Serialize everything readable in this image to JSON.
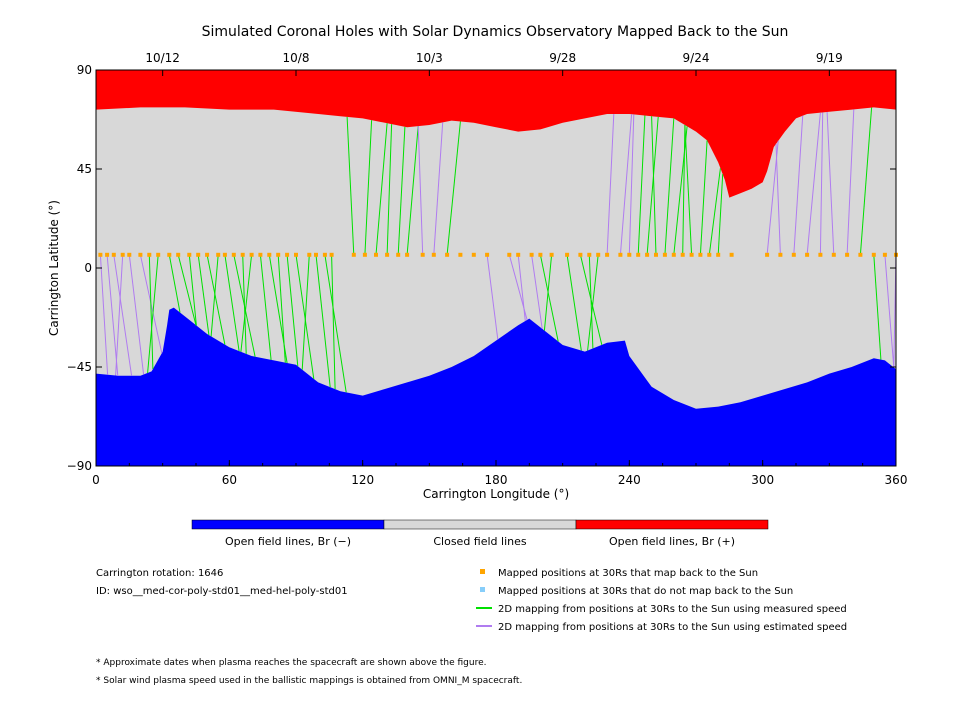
{
  "chart_data": {
    "type": "area",
    "title": "Simulated Coronal Holes with Solar Dynamics Observatory Mapped Back to the Sun",
    "xlabel": "Carrington Longitude (°)",
    "ylabel": "Carrington Latitude (°)",
    "xlim": [
      0,
      360
    ],
    "ylim": [
      -90,
      90
    ],
    "x_ticks": [
      0,
      60,
      120,
      180,
      240,
      300,
      360
    ],
    "y_ticks": [
      -90,
      -45,
      0,
      45,
      90
    ],
    "date_ticks": [
      {
        "label": "10/12",
        "lon": 30
      },
      {
        "label": "10/8",
        "lon": 90
      },
      {
        "label": "10/3",
        "lon": 150
      },
      {
        "label": "9/28",
        "lon": 210
      },
      {
        "label": "9/24",
        "lon": 270
      },
      {
        "label": "9/19",
        "lon": 330
      }
    ],
    "colors": {
      "negative": "#0000ff",
      "closed": "#d8d8d8",
      "positive": "#ff0000",
      "mapped": "#ffa500",
      "unmapped": "#87cefa",
      "measured": "#00e000",
      "estimated": "#b07cf0"
    },
    "north_boundary": [
      [
        0,
        72
      ],
      [
        20,
        73
      ],
      [
        40,
        73
      ],
      [
        60,
        72
      ],
      [
        80,
        72
      ],
      [
        100,
        70
      ],
      [
        110,
        69
      ],
      [
        120,
        68
      ],
      [
        130,
        66
      ],
      [
        140,
        64
      ],
      [
        150,
        65
      ],
      [
        160,
        67
      ],
      [
        170,
        66
      ],
      [
        180,
        64
      ],
      [
        190,
        62
      ],
      [
        200,
        63
      ],
      [
        210,
        66
      ],
      [
        220,
        68
      ],
      [
        230,
        70
      ],
      [
        240,
        70
      ],
      [
        250,
        69
      ],
      [
        260,
        68
      ],
      [
        270,
        62
      ],
      [
        275,
        58
      ],
      [
        280,
        48
      ],
      [
        283,
        40
      ],
      [
        285,
        32
      ],
      [
        290,
        34
      ],
      [
        295,
        36
      ],
      [
        300,
        39
      ],
      [
        302,
        44
      ],
      [
        305,
        55
      ],
      [
        310,
        62
      ],
      [
        315,
        68
      ],
      [
        320,
        70
      ],
      [
        330,
        71
      ],
      [
        340,
        72
      ],
      [
        350,
        73
      ],
      [
        360,
        72
      ]
    ],
    "south_boundary": [
      [
        0,
        -48
      ],
      [
        10,
        -49
      ],
      [
        20,
        -49
      ],
      [
        25,
        -47
      ],
      [
        30,
        -38
      ],
      [
        32,
        -26
      ],
      [
        33,
        -19
      ],
      [
        35,
        -18
      ],
      [
        40,
        -22
      ],
      [
        50,
        -30
      ],
      [
        60,
        -36
      ],
      [
        70,
        -40
      ],
      [
        80,
        -42
      ],
      [
        90,
        -44
      ],
      [
        100,
        -52
      ],
      [
        110,
        -56
      ],
      [
        120,
        -58
      ],
      [
        130,
        -55
      ],
      [
        140,
        -52
      ],
      [
        150,
        -49
      ],
      [
        160,
        -45
      ],
      [
        170,
        -40
      ],
      [
        180,
        -33
      ],
      [
        190,
        -26
      ],
      [
        195,
        -23
      ],
      [
        200,
        -27
      ],
      [
        210,
        -35
      ],
      [
        220,
        -38
      ],
      [
        230,
        -34
      ],
      [
        238,
        -33
      ],
      [
        240,
        -40
      ],
      [
        250,
        -54
      ],
      [
        260,
        -60
      ],
      [
        270,
        -64
      ],
      [
        280,
        -63
      ],
      [
        290,
        -61
      ],
      [
        300,
        -58
      ],
      [
        310,
        -55
      ],
      [
        320,
        -52
      ],
      [
        330,
        -48
      ],
      [
        340,
        -45
      ],
      [
        350,
        -41
      ],
      [
        355,
        -42
      ],
      [
        360,
        -46
      ]
    ],
    "mapped_positions": {
      "latitude": 6,
      "longitudes": [
        2,
        5,
        8,
        12,
        15,
        20,
        24,
        28,
        33,
        37,
        42,
        46,
        50,
        55,
        58,
        62,
        66,
        70,
        74,
        78,
        82,
        86,
        90,
        96,
        99,
        103,
        106,
        116,
        121,
        126,
        131,
        136,
        140,
        147,
        152,
        158,
        164,
        170,
        176,
        186,
        190,
        196,
        200,
        205,
        212,
        218,
        222,
        226,
        230,
        236,
        240,
        244,
        248,
        252,
        256,
        260,
        264,
        268,
        272,
        276,
        280,
        286,
        302,
        308,
        314,
        320,
        326,
        332,
        338,
        344,
        350,
        355,
        360
      ]
    },
    "legend": [
      {
        "label": "Open field lines, Br (−)",
        "color": "#0000ff"
      },
      {
        "label": "Closed field lines",
        "color": "#d8d8d8"
      },
      {
        "label": "Open field lines, Br (+)",
        "color": "#ff0000"
      }
    ]
  },
  "info": {
    "rotation": "Carrington rotation: 1646",
    "id": "ID: wso__med-cor-poly-std01__med-hel-poly-std01"
  },
  "legend_items": {
    "mapped": "Mapped positions at 30Rs that map back to the Sun",
    "unmapped": "Mapped positions at 30Rs that do not map back to the Sun",
    "measured": "2D mapping from positions at 30Rs to the Sun using measured speed",
    "estimated": "2D mapping from positions at 30Rs to the Sun using estimated speed"
  },
  "notes": {
    "n1": "* Approximate dates when plasma reaches the spacecraft are shown above the figure.",
    "n2": "* Solar wind plasma speed used in the ballistic mappings is obtained from OMNI_M spacecraft."
  }
}
